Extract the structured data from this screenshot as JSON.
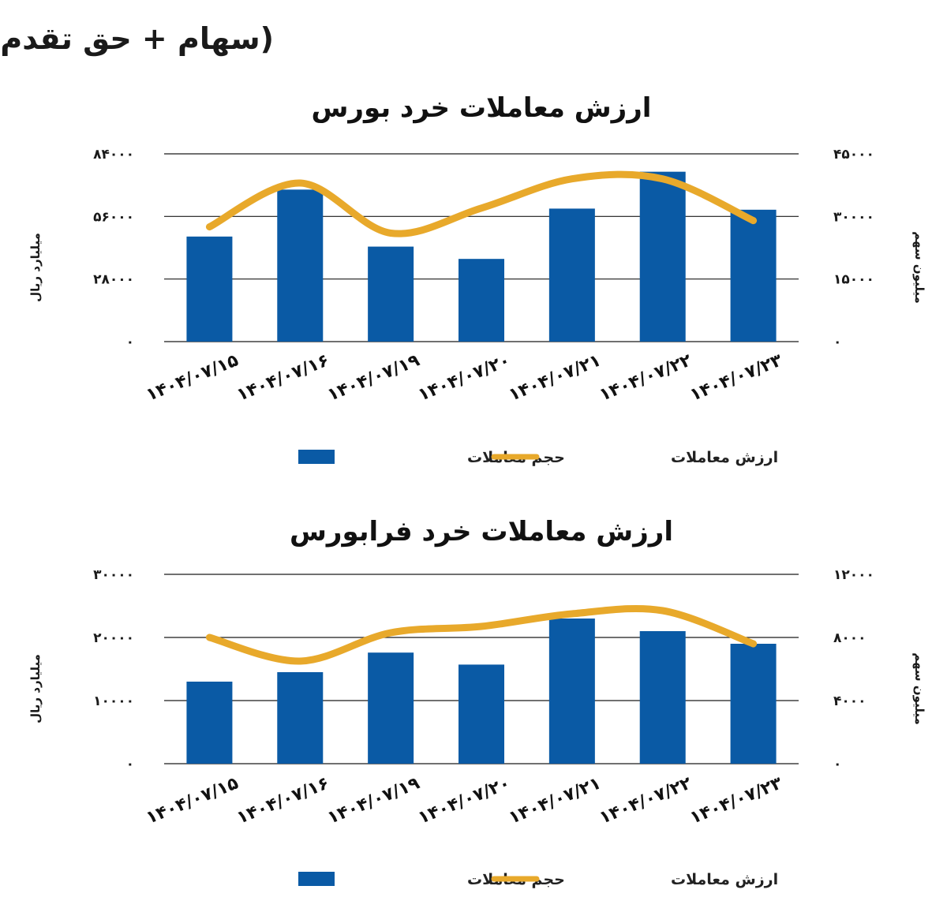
{
  "page": {
    "subtitle": "(سهام + حق تقدم)"
  },
  "colors": {
    "bar": "#0a5aa5",
    "line": "#e8a92b",
    "grid": "#1a1a1a"
  },
  "legend": {
    "bar_label": "حجم معاملات",
    "line_label": "ارزش معاملات"
  },
  "chart_data": [
    {
      "type": "bar",
      "title": "ارزش معاملات خرد بورس",
      "categories": [
        "۱۴۰۴/۰۷/۱۵",
        "۱۴۰۴/۰۷/۱۶",
        "۱۴۰۴/۰۷/۱۹",
        "۱۴۰۴/۰۷/۲۰",
        "۱۴۰۴/۰۷/۲۱",
        "۱۴۰۴/۰۷/۲۲",
        "۱۴۰۴/۰۷/۲۳"
      ],
      "series": [
        {
          "name": "حجم معاملات",
          "type": "bar",
          "axis": "left",
          "values": [
            47000,
            68000,
            42500,
            37000,
            59500,
            76000,
            59000
          ]
        },
        {
          "name": "ارزش معاملات",
          "type": "line",
          "axis": "right",
          "values": [
            27500,
            38000,
            26000,
            32000,
            39000,
            39000,
            29000
          ]
        }
      ],
      "ylabel": "میلیارد ریال",
      "y2label": "میلیون سهم",
      "ylim": [
        0,
        84000
      ],
      "y2lim": [
        0,
        45000
      ],
      "yticks": [
        "۰",
        "۲۸۰۰۰",
        "۵۶۰۰۰",
        "۸۴۰۰۰"
      ],
      "y2ticks": [
        "۰",
        "۱۵۰۰۰",
        "۳۰۰۰۰",
        "۴۵۰۰۰"
      ],
      "grid": true,
      "legend_position": "bottom"
    },
    {
      "type": "bar",
      "title": "ارزش معاملات خرد فرابورس",
      "categories": [
        "۱۴۰۴/۰۷/۱۵",
        "۱۴۰۴/۰۷/۱۶",
        "۱۴۰۴/۰۷/۱۹",
        "۱۴۰۴/۰۷/۲۰",
        "۱۴۰۴/۰۷/۲۱",
        "۱۴۰۴/۰۷/۲۲",
        "۱۴۰۴/۰۷/۲۳"
      ],
      "series": [
        {
          "name": "حجم معاملات",
          "type": "bar",
          "axis": "left",
          "values": [
            13000,
            14500,
            17600,
            15700,
            23000,
            21000,
            19000
          ]
        },
        {
          "name": "ارزش معاملات",
          "type": "line",
          "axis": "right",
          "values": [
            8000,
            6500,
            8300,
            8700,
            9500,
            9700,
            7600
          ]
        }
      ],
      "ylabel": "میلیارد ریال",
      "y2label": "میلیون سهم",
      "ylim": [
        0,
        30000
      ],
      "y2lim": [
        0,
        12000
      ],
      "yticks": [
        "۰",
        "۱۰۰۰۰",
        "۲۰۰۰۰",
        "۳۰۰۰۰"
      ],
      "y2ticks": [
        "۰",
        "۴۰۰۰",
        "۸۰۰۰",
        "۱۲۰۰۰"
      ],
      "grid": true,
      "legend_position": "bottom"
    }
  ]
}
